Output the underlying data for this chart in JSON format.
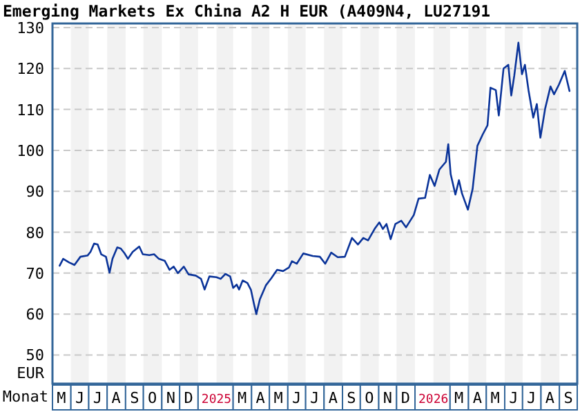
{
  "chart_data": {
    "type": "line",
    "title": "Emerging Markets Ex China A2 H EUR (A409N4, LU27191",
    "xlabel": "Monat",
    "ylabel": "EUR",
    "x": [
      "2024-05-13",
      "2024-05-19",
      "2024-05-29",
      "2024-06-07",
      "2024-06-17",
      "2024-06-29",
      "2024-07-04",
      "2024-07-10",
      "2024-07-16",
      "2024-07-22",
      "2024-07-30",
      "2024-08-05",
      "2024-08-10",
      "2024-08-18",
      "2024-08-24",
      "2024-08-30",
      "2024-09-05",
      "2024-09-13",
      "2024-09-24",
      "2024-09-30",
      "2024-10-11",
      "2024-10-19",
      "2024-10-27",
      "2024-11-06",
      "2024-11-14",
      "2024-11-21",
      "2024-11-28",
      "2024-12-08",
      "2024-12-16",
      "2024-12-28",
      "2025-01-06",
      "2025-01-12",
      "2025-01-20",
      "2025-02-01",
      "2025-02-08",
      "2025-02-16",
      "2025-02-24",
      "2025-03-01",
      "2025-03-07",
      "2025-03-11",
      "2025-03-17",
      "2025-03-25",
      "2025-03-31",
      "2025-04-05",
      "2025-04-09",
      "2025-04-15",
      "2025-04-25",
      "2025-05-04",
      "2025-05-14",
      "2025-05-24",
      "2025-06-03",
      "2025-06-08",
      "2025-06-16",
      "2025-06-27",
      "2025-07-13",
      "2025-07-25",
      "2025-08-03",
      "2025-08-13",
      "2025-08-24",
      "2025-09-05",
      "2025-09-17",
      "2025-09-27",
      "2025-10-06",
      "2025-10-14",
      "2025-10-25",
      "2025-11-02",
      "2025-11-08",
      "2025-11-14",
      "2025-11-21",
      "2025-11-29",
      "2025-12-09",
      "2025-12-17",
      "2025-12-30",
      "2026-01-07",
      "2026-01-18",
      "2026-01-26",
      "2026-02-03",
      "2026-02-11",
      "2026-02-22",
      "2026-02-26",
      "2026-03-02",
      "2026-03-10",
      "2026-03-16",
      "2026-03-21",
      "2026-03-31",
      "2026-04-08",
      "2026-04-16",
      "2026-04-25",
      "2026-05-03",
      "2026-05-08",
      "2026-05-17",
      "2026-05-22",
      "2026-05-30",
      "2026-06-07",
      "2026-06-12",
      "2026-06-17",
      "2026-06-24",
      "2026-06-30",
      "2026-07-05",
      "2026-07-11",
      "2026-07-19",
      "2026-07-25",
      "2026-07-31",
      "2026-08-08",
      "2026-08-17",
      "2026-08-23",
      "2026-08-31",
      "2026-09-10",
      "2026-09-18"
    ],
    "series": [
      {
        "color": "#0a3399",
        "values": [
          71.8,
          73.5,
          72.6,
          72,
          74,
          74.3,
          75.2,
          77.2,
          77,
          74.6,
          74,
          70.1,
          73.5,
          76.3,
          76,
          74.9,
          73.5,
          75.2,
          76.5,
          74.6,
          74.4,
          74.6,
          73.5,
          73,
          70.8,
          71.6,
          70,
          71.6,
          69.7,
          69.4,
          68.6,
          66,
          69.2,
          69,
          68.6,
          69.8,
          69.2,
          66.4,
          67.2,
          66,
          68.2,
          67.6,
          65.9,
          62.5,
          60,
          63.6,
          67,
          68.7,
          70.8,
          70.5,
          71.4,
          72.9,
          72.3,
          74.8,
          74.2,
          74,
          72.3,
          75,
          73.9,
          74,
          78.6,
          77,
          78.6,
          78,
          80.8,
          82.4,
          80.8,
          82,
          78.3,
          82,
          82.8,
          81.2,
          84.2,
          88.2,
          88.4,
          94,
          91.3,
          95.3,
          97.2,
          101.5,
          94.2,
          89.2,
          92.7,
          89.5,
          85.5,
          90.6,
          101.1,
          103.9,
          106.1,
          115.3,
          114.7,
          108.5,
          120,
          120.9,
          113.4,
          118.2,
          126.3,
          118.6,
          120.9,
          114.7,
          108,
          111.3,
          103.1,
          110.2,
          115.6,
          113.7,
          116,
          119.4,
          114.5
        ]
      }
    ],
    "xlim": [
      "2024-05-01",
      "2026-10-01"
    ],
    "xticks": [
      {
        "value": "2024-05-16",
        "label": "M"
      },
      {
        "value": "2024-06-16",
        "label": "J"
      },
      {
        "value": "2024-07-16",
        "label": "J"
      },
      {
        "value": "2024-08-16",
        "label": "A"
      },
      {
        "value": "2024-09-16",
        "label": "S"
      },
      {
        "value": "2024-10-16",
        "label": "O"
      },
      {
        "value": "2024-11-16",
        "label": "N"
      },
      {
        "value": "2024-12-16",
        "label": "D"
      },
      {
        "value": "2025-02-01",
        "label": "2025"
      },
      {
        "value": "2025-03-16",
        "label": "M"
      },
      {
        "value": "2025-04-16",
        "label": "A"
      },
      {
        "value": "2025-05-16",
        "label": "M"
      },
      {
        "value": "2025-06-16",
        "label": "J"
      },
      {
        "value": "2025-07-16",
        "label": "J"
      },
      {
        "value": "2025-08-16",
        "label": "A"
      },
      {
        "value": "2025-09-16",
        "label": "S"
      },
      {
        "value": "2025-10-16",
        "label": "O"
      },
      {
        "value": "2025-11-16",
        "label": "N"
      },
      {
        "value": "2025-12-16",
        "label": "D"
      },
      {
        "value": "2026-02-01",
        "label": "2026"
      },
      {
        "value": "2026-03-16",
        "label": "M"
      },
      {
        "value": "2026-04-16",
        "label": "A"
      },
      {
        "value": "2026-05-16",
        "label": "M"
      },
      {
        "value": "2026-06-16",
        "label": "J"
      },
      {
        "value": "2026-07-16",
        "label": "J"
      },
      {
        "value": "2026-08-16",
        "label": "A"
      },
      {
        "value": "2026-09-16",
        "label": "S"
      }
    ],
    "ylim": [
      43,
      131
    ],
    "bands": [
      {
        "axis": "x",
        "from": "2024-06-01",
        "to": "2024-07-01",
        "color": "#f2f2f2"
      },
      {
        "axis": "x",
        "from": "2024-08-01",
        "to": "2024-09-01",
        "color": "#f2f2f2"
      },
      {
        "axis": "x",
        "from": "2024-10-01",
        "to": "2024-11-01",
        "color": "#f2f2f2"
      },
      {
        "axis": "x",
        "from": "2024-12-01",
        "to": "2025-01-01",
        "color": "#f2f2f2"
      },
      {
        "axis": "x",
        "from": "2025-02-01",
        "to": "2025-03-01",
        "color": "#f2f2f2"
      },
      {
        "axis": "x",
        "from": "2025-04-01",
        "to": "2025-05-01",
        "color": "#f2f2f2"
      },
      {
        "axis": "x",
        "from": "2025-06-01",
        "to": "2025-07-01",
        "color": "#f2f2f2"
      },
      {
        "axis": "x",
        "from": "2025-08-01",
        "to": "2025-09-01",
        "color": "#f2f2f2"
      },
      {
        "axis": "x",
        "from": "2025-10-01",
        "to": "2025-11-01",
        "color": "#f2f2f2"
      },
      {
        "axis": "x",
        "from": "2025-12-01",
        "to": "2026-01-01",
        "color": "#f2f2f2"
      },
      {
        "axis": "x",
        "from": "2026-02-01",
        "to": "2026-03-01",
        "color": "#f2f2f2"
      },
      {
        "axis": "x",
        "from": "2026-04-01",
        "to": "2026-05-01",
        "color": "#f2f2f2"
      },
      {
        "axis": "x",
        "from": "2026-06-01",
        "to": "2026-07-01",
        "color": "#f2f2f2"
      },
      {
        "axis": "x",
        "from": "2026-08-01",
        "to": "2026-09-01",
        "color": "#f2f2f2"
      }
    ],
    "yticks": [
      50,
      60,
      70,
      80,
      90,
      100,
      110,
      120,
      130
    ],
    "grid": "y",
    "line_style": "solid"
  }
}
